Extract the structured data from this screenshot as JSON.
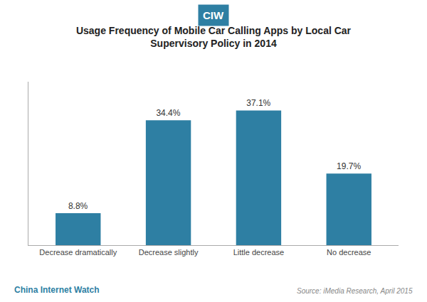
{
  "chart_data": {
    "type": "bar",
    "title": "Usage Frequency of Mobile Car Calling Apps by Local Car\nSupervisory Policy in 2014",
    "categories": [
      "Decrease dramatically",
      "Decrease slightly",
      "Little decrease",
      "No decrease"
    ],
    "values": [
      8.8,
      34.4,
      37.1,
      19.7
    ],
    "value_labels": [
      "8.8%",
      "34.4%",
      "37.1%",
      "19.7%"
    ],
    "data_labels": true,
    "color": "#2e7fa3",
    "ylim": [
      0,
      45
    ],
    "grid": false,
    "tick_labels": "x",
    "annotations": [
      "CIW",
      "China Internet Watch",
      "Source: iMedia Research, April 2015"
    ]
  }
}
